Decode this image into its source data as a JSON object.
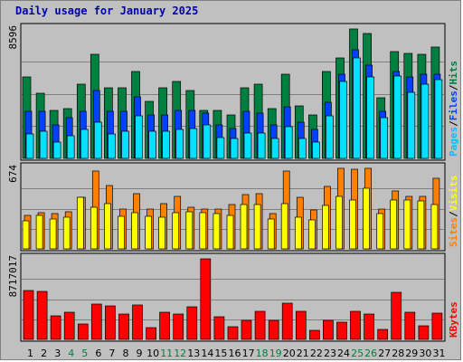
{
  "chart_data": {
    "type": "bar",
    "title": "Daily usage for January 2025",
    "categories": [
      "1",
      "2",
      "3",
      "4",
      "5",
      "6",
      "7",
      "8",
      "9",
      "10",
      "11",
      "12",
      "13",
      "14",
      "15",
      "16",
      "17",
      "18",
      "19",
      "20",
      "21",
      "22",
      "23",
      "24",
      "25",
      "26",
      "27",
      "28",
      "29",
      "30",
      "31"
    ],
    "weekend_days": [
      "4",
      "5",
      "11",
      "12",
      "18",
      "19",
      "25",
      "26"
    ],
    "colors": {
      "hits": "#008040",
      "files": "#0040ff",
      "pages": "#00e0ff",
      "visits": "#ff8000",
      "sites": "#ffff00",
      "kbytes": "#ff0000",
      "title": "#0000b0",
      "weekday_label": "#000000",
      "weekend_label": "#008040"
    },
    "panels": [
      {
        "id": "hits-files-pages",
        "max_label": "8596",
        "ylim": [
          0,
          8596
        ],
        "legend": [
          {
            "label": "Pages",
            "color": "#00c0ff"
          },
          {
            "label": "/",
            "color": "#000000"
          },
          {
            "label": "Files",
            "color": "#0040ff"
          },
          {
            "label": "/",
            "color": "#000000"
          },
          {
            "label": "Hits",
            "color": "#008040"
          }
        ],
        "series": [
          {
            "name": "Hits",
            "color": "#008040",
            "values": [
              5400,
              4300,
              3200,
              3300,
              4900,
              6900,
              4700,
              4700,
              5800,
              3800,
              4700,
              5100,
              4500,
              3200,
              3200,
              2900,
              4700,
              4900,
              3300,
              5600,
              3500,
              2900,
              5800,
              6700,
              8596,
              8300,
              4000,
              7100,
              7000,
              6900,
              7400
            ]
          },
          {
            "name": "Files",
            "color": "#0040ff",
            "values": [
              3100,
              3100,
              2200,
              2700,
              3100,
              4500,
              3100,
              3100,
              4100,
              2900,
              2900,
              3200,
              3200,
              3000,
              2200,
              2000,
              3100,
              3000,
              2200,
              3400,
              2400,
              1900,
              3700,
              5600,
              7200,
              6200,
              3100,
              5800,
              5400,
              5600,
              5600
            ]
          },
          {
            "name": "Pages",
            "color": "#00e0ff",
            "values": [
              1600,
              1800,
              1100,
              1500,
              1900,
              2400,
              1600,
              1800,
              2800,
              1800,
              1800,
              1900,
              2000,
              2200,
              1400,
              1300,
              1700,
              1700,
              1300,
              2100,
              1300,
              1100,
              2800,
              5100,
              6700,
              5400,
              2700,
              5500,
              4400,
              4900,
              5200
            ]
          }
        ]
      },
      {
        "id": "visits-sites",
        "max_label": "674",
        "ylim": [
          0,
          674
        ],
        "legend": [
          {
            "label": "Sites",
            "color": "#ff8000"
          },
          {
            "label": "/",
            "color": "#000000"
          },
          {
            "label": "Visits",
            "color": "#ffff00"
          }
        ],
        "series": [
          {
            "name": "Visits",
            "color": "#ff8000",
            "values": [
              282,
              302,
              292,
              312,
              432,
              654,
              532,
              332,
              462,
              332,
              382,
              442,
              352,
              332,
              332,
              372,
              452,
              462,
              292,
              652,
              432,
              322,
              522,
              674,
              664,
              674,
              332,
              482,
              442,
              442,
              592
            ]
          },
          {
            "name": "Sites",
            "color": "#ffff00",
            "values": [
              232,
              282,
              252,
              262,
              432,
              352,
              382,
              272,
              302,
              272,
              262,
              302,
              312,
              302,
              292,
              282,
              372,
              372,
              252,
              382,
              262,
              242,
              362,
              442,
              412,
              504,
              292,
              412,
              412,
              402,
              372
            ]
          }
        ]
      },
      {
        "id": "kbytes",
        "max_label": "8717017",
        "ylim": [
          0,
          8717017
        ],
        "legend": [
          {
            "label": "KBytes",
            "color": "#ff0000"
          }
        ],
        "series": [
          {
            "name": "KBytes",
            "color": "#ff0000",
            "values": [
              5300000,
              5200000,
              2500000,
              2900000,
              1700000,
              3800000,
              3600000,
              2700000,
              3700000,
              1300000,
              2900000,
              2700000,
              3500000,
              8717017,
              2400000,
              1400000,
              2100000,
              3000000,
              2100000,
              3900000,
              3000000,
              1000000,
              2100000,
              1900000,
              3000000,
              2700000,
              1100000,
              5100000,
              2900000,
              1500000,
              2800000
            ]
          }
        ]
      }
    ]
  }
}
